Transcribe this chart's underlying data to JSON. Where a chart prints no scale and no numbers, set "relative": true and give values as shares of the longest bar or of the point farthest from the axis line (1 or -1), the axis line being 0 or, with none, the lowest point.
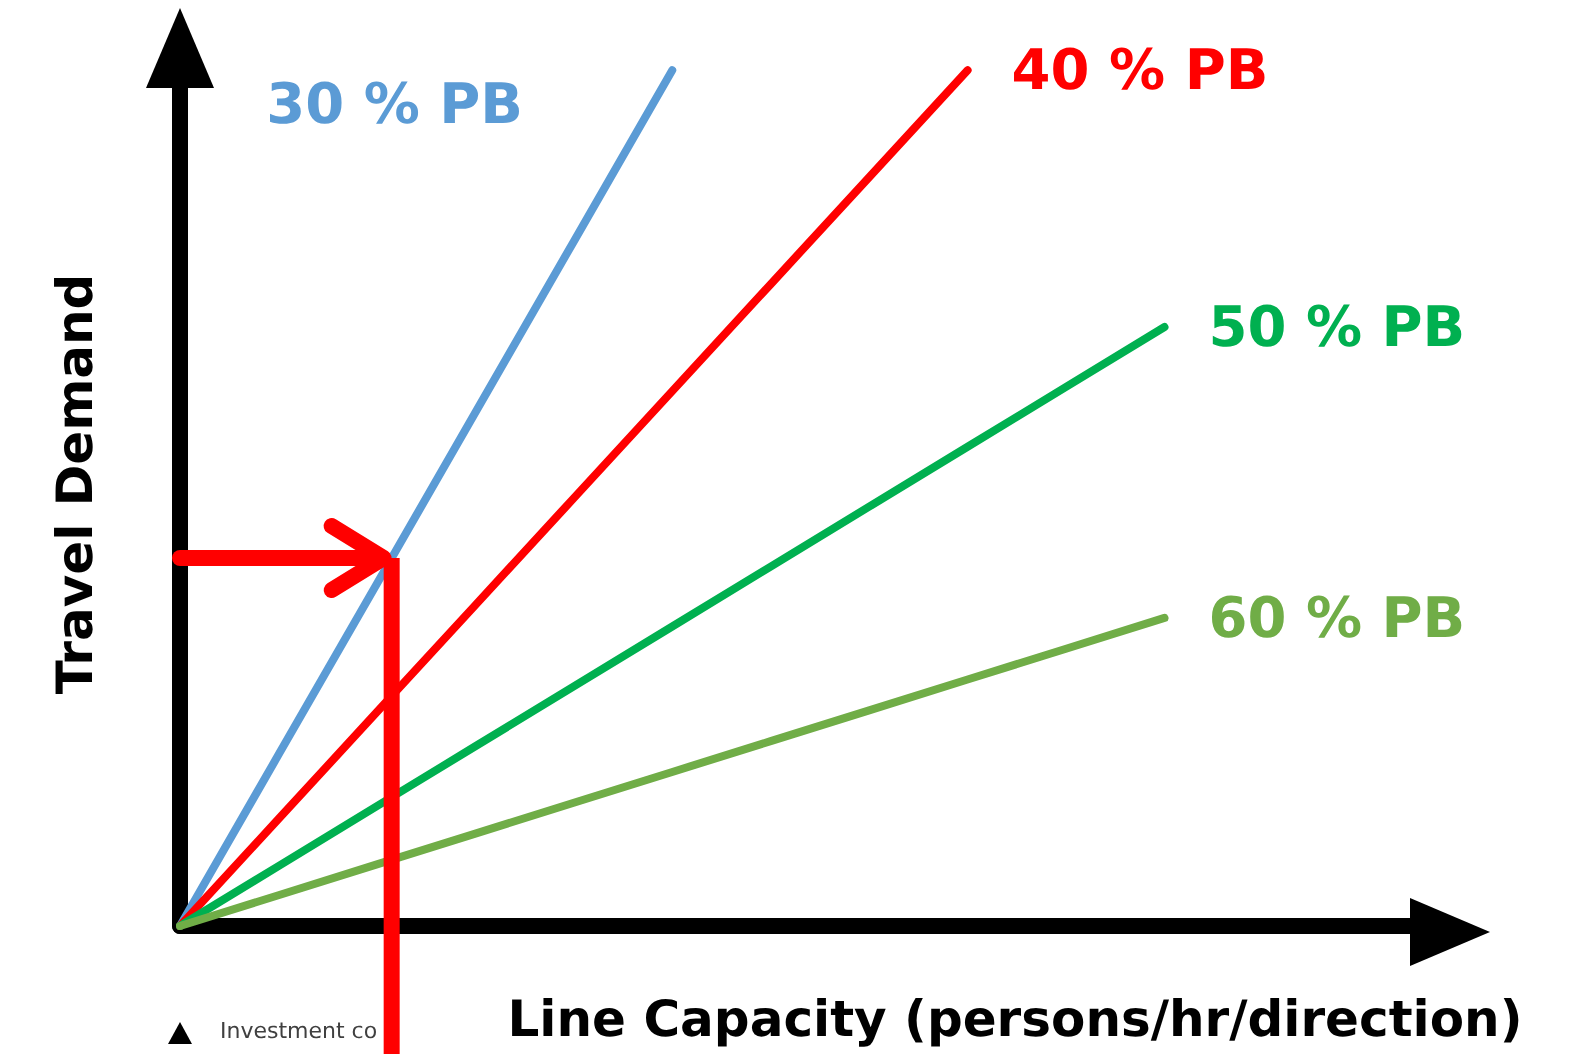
{
  "chart_data": {
    "type": "line",
    "relative": true,
    "xlabel": "Line Capacity (persons/hr/direction)",
    "ylabel": "Travel Demand",
    "grid": false,
    "legend": false,
    "marker": "none",
    "line_style": "solid",
    "categories": [
      null,
      null,
      null,
      null,
      null,
      null,
      null,
      null,
      null,
      null,
      null
    ],
    "series": [
      {
        "name": "30 % PB",
        "color": "#5b9bd5",
        "values": [
          0,
          0.2,
          0.4,
          0.6,
          0.8,
          1,
          null,
          null,
          null,
          null,
          null
        ]
      },
      {
        "name": "40 % PB",
        "color": "#ff0000",
        "values": [
          0,
          0.125,
          0.25,
          0.375,
          0.5,
          0.625,
          0.75,
          0.875,
          1,
          null,
          null
        ]
      },
      {
        "name": "50 % PB",
        "color": "#00b050",
        "values": [
          0,
          0.07,
          0.14,
          0.21,
          0.28,
          0.35,
          0.42,
          0.49,
          0.56,
          0.63,
          0.7
        ]
      },
      {
        "name": "60 % PB",
        "color": "#70ad47",
        "values": [
          0,
          0.036,
          0.072,
          0.108,
          0.144,
          0.18,
          0.216,
          0.252,
          0.288,
          0.324,
          0.36
        ]
      }
    ],
    "ref_lines": [
      {
        "axis": "y",
        "value": 0.43,
        "color": "#ff0000"
      }
    ],
    "annotations": [
      "Investment co"
    ]
  }
}
